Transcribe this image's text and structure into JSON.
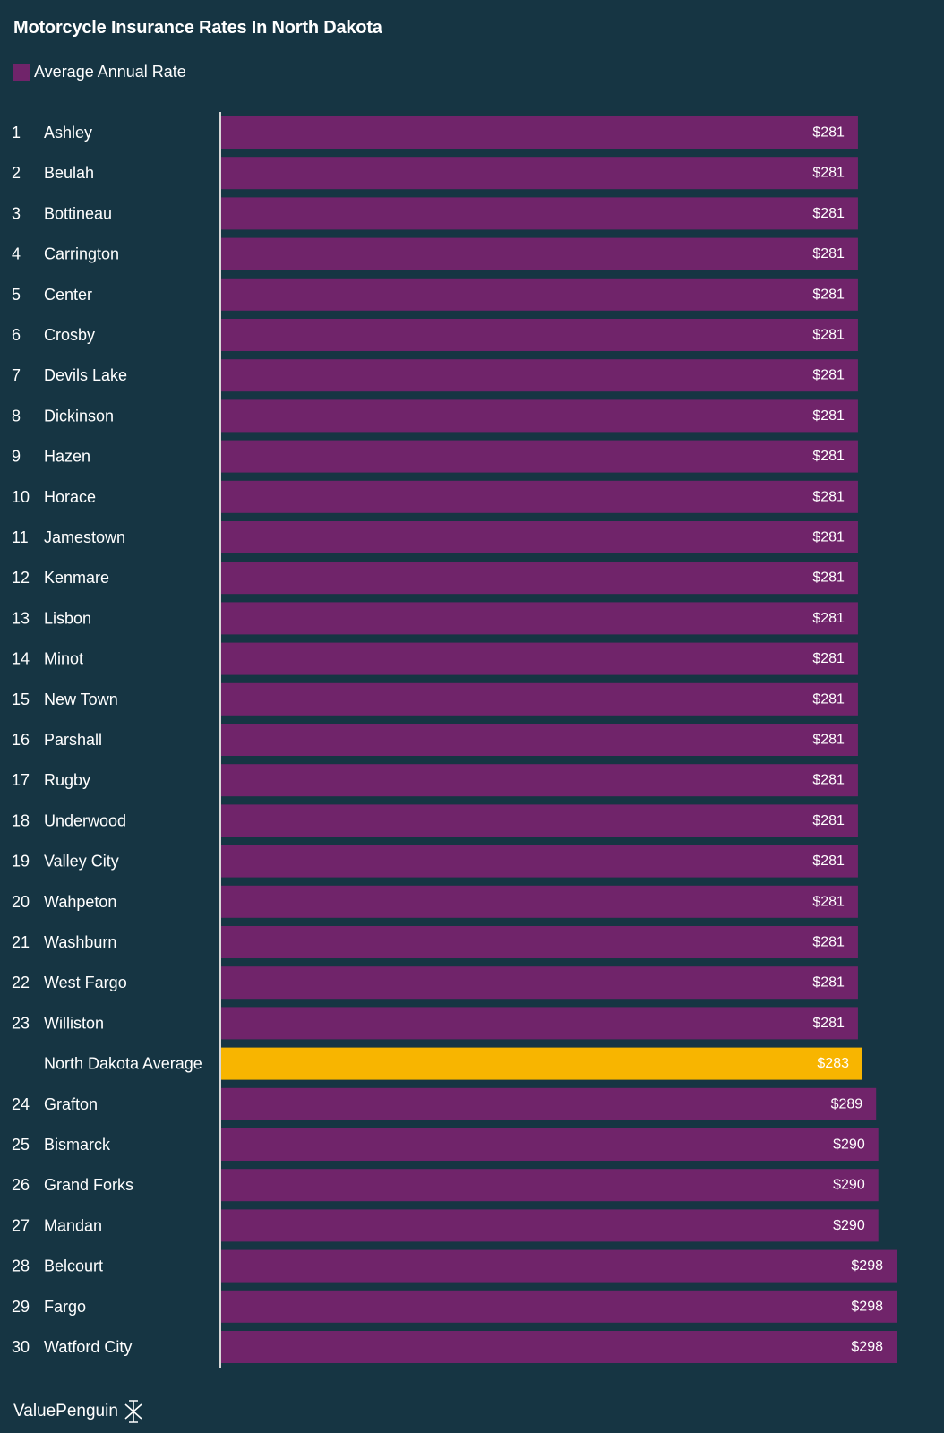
{
  "title": "Motorcycle Insurance Rates In North Dakota",
  "legend": {
    "label": "Average Annual Rate"
  },
  "colors": {
    "background": "#163543",
    "bar": "#70246a",
    "highlight": "#f8b500",
    "axis": "#d8d8d8"
  },
  "footer": {
    "brand": "ValuePenguin",
    "icon": "valuepenguin-logo-icon"
  },
  "chart_data": {
    "type": "bar",
    "orientation": "horizontal",
    "title": "Motorcycle Insurance Rates In North Dakota",
    "legend": "top-left",
    "grid": false,
    "xlim": [
      0,
      298
    ],
    "series": [
      {
        "name": "Average Annual Rate"
      }
    ],
    "rows": [
      {
        "rank": "1",
        "name": "Ashley",
        "value": 281,
        "label": "$281",
        "highlight": false
      },
      {
        "rank": "2",
        "name": "Beulah",
        "value": 281,
        "label": "$281",
        "highlight": false
      },
      {
        "rank": "3",
        "name": "Bottineau",
        "value": 281,
        "label": "$281",
        "highlight": false
      },
      {
        "rank": "4",
        "name": "Carrington",
        "value": 281,
        "label": "$281",
        "highlight": false
      },
      {
        "rank": "5",
        "name": "Center",
        "value": 281,
        "label": "$281",
        "highlight": false
      },
      {
        "rank": "6",
        "name": "Crosby",
        "value": 281,
        "label": "$281",
        "highlight": false
      },
      {
        "rank": "7",
        "name": "Devils Lake",
        "value": 281,
        "label": "$281",
        "highlight": false
      },
      {
        "rank": "8",
        "name": "Dickinson",
        "value": 281,
        "label": "$281",
        "highlight": false
      },
      {
        "rank": "9",
        "name": "Hazen",
        "value": 281,
        "label": "$281",
        "highlight": false
      },
      {
        "rank": "10",
        "name": "Horace",
        "value": 281,
        "label": "$281",
        "highlight": false
      },
      {
        "rank": "11",
        "name": "Jamestown",
        "value": 281,
        "label": "$281",
        "highlight": false
      },
      {
        "rank": "12",
        "name": "Kenmare",
        "value": 281,
        "label": "$281",
        "highlight": false
      },
      {
        "rank": "13",
        "name": "Lisbon",
        "value": 281,
        "label": "$281",
        "highlight": false
      },
      {
        "rank": "14",
        "name": "Minot",
        "value": 281,
        "label": "$281",
        "highlight": false
      },
      {
        "rank": "15",
        "name": "New Town",
        "value": 281,
        "label": "$281",
        "highlight": false
      },
      {
        "rank": "16",
        "name": "Parshall",
        "value": 281,
        "label": "$281",
        "highlight": false
      },
      {
        "rank": "17",
        "name": "Rugby",
        "value": 281,
        "label": "$281",
        "highlight": false
      },
      {
        "rank": "18",
        "name": "Underwood",
        "value": 281,
        "label": "$281",
        "highlight": false
      },
      {
        "rank": "19",
        "name": "Valley City",
        "value": 281,
        "label": "$281",
        "highlight": false
      },
      {
        "rank": "20",
        "name": "Wahpeton",
        "value": 281,
        "label": "$281",
        "highlight": false
      },
      {
        "rank": "21",
        "name": "Washburn",
        "value": 281,
        "label": "$281",
        "highlight": false
      },
      {
        "rank": "22",
        "name": "West Fargo",
        "value": 281,
        "label": "$281",
        "highlight": false
      },
      {
        "rank": "23",
        "name": "Williston",
        "value": 281,
        "label": "$281",
        "highlight": false
      },
      {
        "rank": "",
        "name": "North Dakota Average",
        "value": 283,
        "label": "$283",
        "highlight": true
      },
      {
        "rank": "24",
        "name": "Grafton",
        "value": 289,
        "label": "$289",
        "highlight": false
      },
      {
        "rank": "25",
        "name": "Bismarck",
        "value": 290,
        "label": "$290",
        "highlight": false
      },
      {
        "rank": "26",
        "name": "Grand Forks",
        "value": 290,
        "label": "$290",
        "highlight": false
      },
      {
        "rank": "27",
        "name": "Mandan",
        "value": 290,
        "label": "$290",
        "highlight": false
      },
      {
        "rank": "28",
        "name": "Belcourt",
        "value": 298,
        "label": "$298",
        "highlight": false
      },
      {
        "rank": "29",
        "name": "Fargo",
        "value": 298,
        "label": "$298",
        "highlight": false
      },
      {
        "rank": "30",
        "name": "Watford City",
        "value": 298,
        "label": "$298",
        "highlight": false
      }
    ]
  }
}
